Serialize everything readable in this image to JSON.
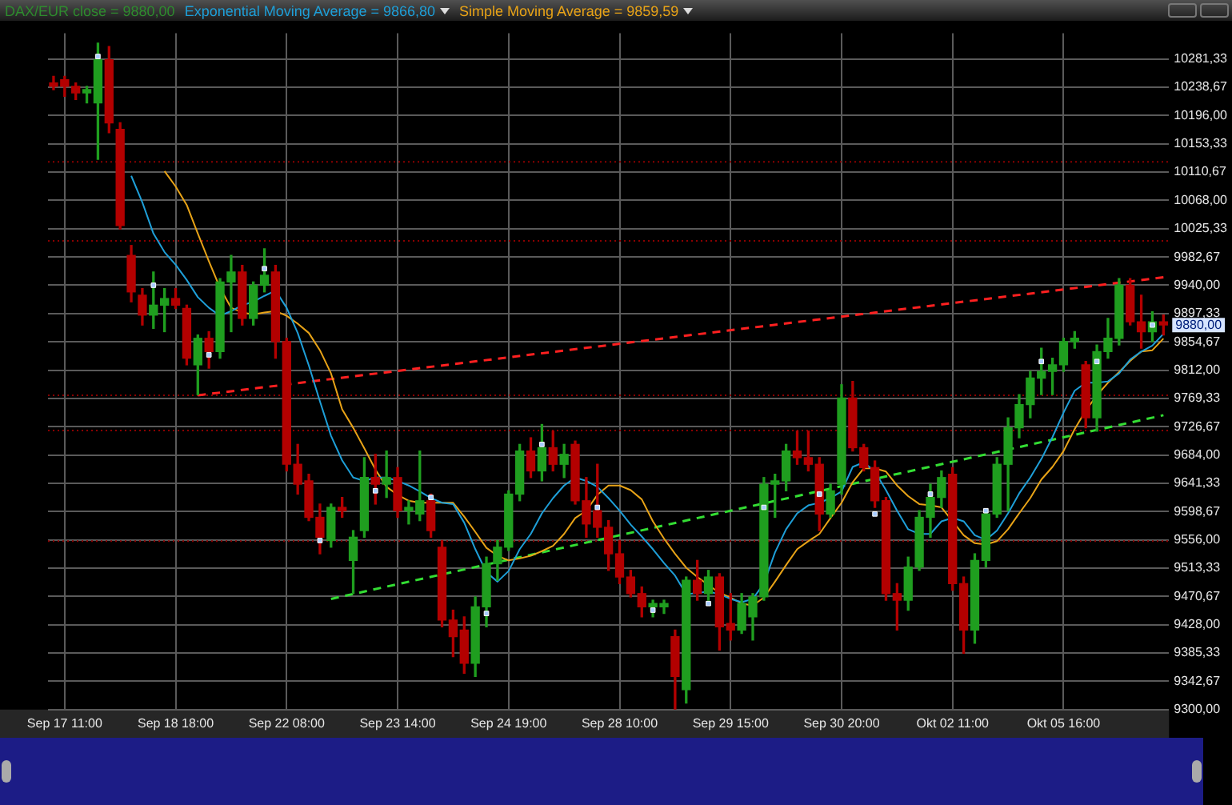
{
  "chart_data": {
    "type": "candlestick",
    "legend": "top left",
    "grid": true,
    "categories": [
      null,
      "Sep 17 11:00",
      null,
      null,
      null,
      null,
      null,
      null,
      null,
      null,
      null,
      "Sep 18 18:00",
      null,
      null,
      null,
      null,
      null,
      null,
      null,
      null,
      null,
      "Sep 22 08:00",
      null,
      null,
      null,
      null,
      null,
      null,
      null,
      null,
      null,
      "Sep 23 14:00",
      null,
      null,
      null,
      null,
      null,
      null,
      null,
      null,
      null,
      "Sep 24 19:00",
      null,
      null,
      null,
      null,
      null,
      null,
      null,
      null,
      null,
      "Sep 28 10:00",
      null,
      null,
      null,
      null,
      null,
      null,
      null,
      null,
      null,
      "Sep 29 15:00",
      null,
      null,
      null,
      null,
      null,
      null,
      null,
      null,
      null,
      "Sep 30 20:00",
      null,
      null,
      null,
      null,
      null,
      null,
      null,
      null,
      null,
      "Okt 02 11:00",
      null,
      null,
      null,
      null,
      null,
      null,
      null,
      null,
      null,
      "Okt 05 16:00",
      null,
      null,
      null,
      null,
      null,
      null,
      null,
      null,
      null
    ],
    "ylim": [
      9300,
      10320
    ],
    "yticks": [
      {
        "value": 9300,
        "label": "9300,00"
      },
      {
        "value": 9342.67,
        "label": "9342,67"
      },
      {
        "value": 9385.33,
        "label": "9385,33"
      },
      {
        "value": 9428,
        "label": "9428,00"
      },
      {
        "value": 9470.67,
        "label": "9470,67"
      },
      {
        "value": 9513.33,
        "label": "9513,33"
      },
      {
        "value": 9556,
        "label": "9556,00"
      },
      {
        "value": 9598.67,
        "label": "9598,67"
      },
      {
        "value": 9641.33,
        "label": "9641,33"
      },
      {
        "value": 9684,
        "label": "9684,00"
      },
      {
        "value": 9726.67,
        "label": "9726,67"
      },
      {
        "value": 9769.33,
        "label": "9769,33"
      },
      {
        "value": 9812,
        "label": "9812,00"
      },
      {
        "value": 9854.67,
        "label": "9854,67"
      },
      {
        "value": 9897.33,
        "label": "9897,33"
      },
      {
        "value": 9940,
        "label": "9940,00"
      },
      {
        "value": 9982.67,
        "label": "9982,67"
      },
      {
        "value": 10025.33,
        "label": "10025,33"
      },
      {
        "value": 10068,
        "label": "10068,00"
      },
      {
        "value": 10110.67,
        "label": "10110,67"
      },
      {
        "value": 10153.33,
        "label": "10153,33"
      },
      {
        "value": 10196,
        "label": "10196,00"
      },
      {
        "value": 10238.67,
        "label": "10238,67"
      },
      {
        "value": 10281.33,
        "label": "10281,33"
      }
    ],
    "ref_lines": [
      {
        "axis": "y",
        "value": 10126,
        "color": "#8b0000",
        "line_style": "dotted"
      },
      {
        "axis": "y",
        "value": 10007,
        "color": "#8b0000",
        "line_style": "dotted"
      },
      {
        "axis": "y",
        "value": 9774,
        "color": "#8b0000",
        "line_style": "dotted"
      },
      {
        "axis": "y",
        "value": 9721,
        "color": "#8b0000",
        "line_style": "dotted"
      },
      {
        "axis": "y",
        "value": 9554,
        "color": "#8b0000",
        "line_style": "dotted"
      }
    ],
    "annotations": [
      "9880,00"
    ],
    "series": [
      {
        "name": "DAX/EUR close = 9880,00",
        "color": "#2e8b2e",
        "ohlc": [
          [
            10245,
            10255,
            10235,
            10240
          ],
          [
            10250,
            10255,
            10225,
            10240
          ],
          [
            10240,
            10245,
            10220,
            10230
          ],
          [
            10230,
            10240,
            10215,
            10235
          ],
          [
            10215,
            10305,
            10130,
            10280
          ],
          [
            10280,
            10300,
            10170,
            10185
          ],
          [
            10175,
            10185,
            10025,
            10030
          ],
          [
            9985,
            10000,
            9915,
            9930
          ],
          [
            9925,
            9935,
            9880,
            9895
          ],
          [
            9895,
            9960,
            9875,
            9910
          ],
          [
            9910,
            9935,
            9870,
            9920
          ],
          [
            9920,
            9935,
            9905,
            9910
          ],
          [
            9905,
            9910,
            9820,
            9830
          ],
          [
            9820,
            9865,
            9775,
            9860
          ],
          [
            9860,
            9870,
            9815,
            9840
          ],
          [
            9840,
            9950,
            9830,
            9945
          ],
          [
            9945,
            9985,
            9870,
            9960
          ],
          [
            9960,
            9970,
            9880,
            9890
          ],
          [
            9890,
            9945,
            9880,
            9940
          ],
          [
            9940,
            9995,
            9930,
            9955
          ],
          [
            9960,
            9970,
            9830,
            9855
          ],
          [
            9855,
            9860,
            9660,
            9670
          ],
          [
            9670,
            9700,
            9625,
            9640
          ],
          [
            9645,
            9655,
            9585,
            9590
          ],
          [
            9590,
            9610,
            9535,
            9560
          ],
          [
            9555,
            9610,
            9545,
            9605
          ],
          [
            9605,
            9620,
            9590,
            9600
          ],
          [
            9525,
            9570,
            9475,
            9560
          ],
          [
            9570,
            9680,
            9560,
            9650
          ],
          [
            9650,
            9685,
            9610,
            9640
          ],
          [
            9640,
            9690,
            9620,
            9650
          ],
          [
            9650,
            9665,
            9590,
            9600
          ],
          [
            9600,
            9615,
            9580,
            9605
          ],
          [
            9595,
            9690,
            9585,
            9615
          ],
          [
            9615,
            9625,
            9560,
            9570
          ],
          [
            9545,
            9555,
            9425,
            9435
          ],
          [
            9435,
            9450,
            9380,
            9410
          ],
          [
            9420,
            9440,
            9355,
            9370
          ],
          [
            9370,
            9470,
            9350,
            9455
          ],
          [
            9455,
            9530,
            9425,
            9520
          ],
          [
            9520,
            9555,
            9495,
            9545
          ],
          [
            9545,
            9630,
            9540,
            9625
          ],
          [
            9625,
            9700,
            9615,
            9690
          ],
          [
            9690,
            9710,
            9650,
            9660
          ],
          [
            9660,
            9730,
            9645,
            9695
          ],
          [
            9695,
            9720,
            9660,
            9670
          ],
          [
            9670,
            9700,
            9650,
            9685
          ],
          [
            9700,
            9705,
            9610,
            9615
          ],
          [
            9615,
            9650,
            9560,
            9580
          ],
          [
            9600,
            9670,
            9560,
            9575
          ],
          [
            9575,
            9585,
            9510,
            9535
          ],
          [
            9535,
            9555,
            9490,
            9500
          ],
          [
            9500,
            9510,
            9470,
            9475
          ],
          [
            9475,
            9485,
            9440,
            9455
          ],
          [
            9455,
            9465,
            9440,
            9460
          ],
          [
            9455,
            9465,
            9445,
            9460
          ],
          [
            9410,
            9420,
            9300,
            9350
          ],
          [
            9330,
            9500,
            9310,
            9495
          ],
          [
            9495,
            9525,
            9465,
            9475
          ],
          [
            9475,
            9510,
            9465,
            9500
          ],
          [
            9500,
            9505,
            9390,
            9425
          ],
          [
            9430,
            9475,
            9405,
            9420
          ],
          [
            9420,
            9475,
            9415,
            9460
          ],
          [
            9440,
            9475,
            9405,
            9470
          ],
          [
            9470,
            9650,
            9465,
            9640
          ],
          [
            9640,
            9655,
            9590,
            9645
          ],
          [
            9645,
            9700,
            9630,
            9690
          ],
          [
            9690,
            9720,
            9670,
            9680
          ],
          [
            9680,
            9720,
            9660,
            9670
          ],
          [
            9670,
            9680,
            9570,
            9595
          ],
          [
            9595,
            9640,
            9590,
            9630
          ],
          [
            9640,
            9790,
            9625,
            9770
          ],
          [
            9770,
            9795,
            9690,
            9695
          ],
          [
            9695,
            9700,
            9660,
            9665
          ],
          [
            9665,
            9675,
            9605,
            9615
          ],
          [
            9615,
            9620,
            9465,
            9475
          ],
          [
            9475,
            9490,
            9420,
            9465
          ],
          [
            9465,
            9530,
            9450,
            9515
          ],
          [
            9515,
            9600,
            9510,
            9590
          ],
          [
            9590,
            9640,
            9560,
            9620
          ],
          [
            9620,
            9660,
            9605,
            9650
          ],
          [
            9655,
            9665,
            9480,
            9490
          ],
          [
            9490,
            9500,
            9385,
            9420
          ],
          [
            9420,
            9535,
            9400,
            9525
          ],
          [
            9525,
            9600,
            9515,
            9595
          ],
          [
            9595,
            9680,
            9590,
            9670
          ],
          [
            9670,
            9740,
            9600,
            9725
          ],
          [
            9725,
            9775,
            9710,
            9760
          ],
          [
            9760,
            9810,
            9740,
            9800
          ],
          [
            9800,
            9845,
            9775,
            9810
          ],
          [
            9810,
            9830,
            9775,
            9820
          ],
          [
            9820,
            9860,
            9810,
            9855
          ],
          [
            9855,
            9870,
            9845,
            9860
          ],
          [
            9820,
            9825,
            9725,
            9740
          ],
          [
            9740,
            9850,
            9720,
            9840
          ],
          [
            9840,
            9890,
            9830,
            9860
          ],
          [
            9860,
            9950,
            9850,
            9940
          ],
          [
            9940,
            9950,
            9880,
            9885
          ],
          [
            9885,
            9925,
            9845,
            9870
          ],
          [
            9870,
            9900,
            9855,
            9885
          ],
          [
            9885,
            9895,
            9865,
            9880
          ]
        ],
        "colors": [
          "#b30000",
          "#b30000",
          "#b30000",
          "#1f9e1f",
          "#1f9e1f",
          "#b30000",
          "#b30000",
          "#b30000",
          "#b30000",
          "#1f9e1f",
          "#1f9e1f",
          "#b30000",
          "#b30000",
          "#1f9e1f",
          "#b30000",
          "#1f9e1f",
          "#1f9e1f",
          "#b30000",
          "#1f9e1f",
          "#1f9e1f",
          "#b30000",
          "#b30000",
          "#b30000",
          "#b30000",
          "#b30000",
          "#1f9e1f",
          "#b30000",
          "#1f9e1f",
          "#1f9e1f",
          "#b30000",
          "#1f9e1f",
          "#b30000",
          "#1f9e1f",
          "#1f9e1f",
          "#b30000",
          "#b30000",
          "#b30000",
          "#b30000",
          "#1f9e1f",
          "#1f9e1f",
          "#1f9e1f",
          "#1f9e1f",
          "#1f9e1f",
          "#b30000",
          "#1f9e1f",
          "#b30000",
          "#1f9e1f",
          "#b30000",
          "#b30000",
          "#b30000",
          "#b30000",
          "#b30000",
          "#b30000",
          "#b30000",
          "#1f9e1f",
          "#1f9e1f",
          "#b30000",
          "#1f9e1f",
          "#b30000",
          "#1f9e1f",
          "#b30000",
          "#b30000",
          "#1f9e1f",
          "#1f9e1f",
          "#1f9e1f",
          "#1f9e1f",
          "#1f9e1f",
          "#b30000",
          "#b30000",
          "#b30000",
          "#1f9e1f",
          "#1f9e1f",
          "#b30000",
          "#b30000",
          "#b30000",
          "#b30000",
          "#b30000",
          "#1f9e1f",
          "#1f9e1f",
          "#1f9e1f",
          "#1f9e1f",
          "#b30000",
          "#b30000",
          "#1f9e1f",
          "#1f9e1f",
          "#1f9e1f",
          "#1f9e1f",
          "#1f9e1f",
          "#1f9e1f",
          "#1f9e1f",
          "#1f9e1f",
          "#1f9e1f",
          "#1f9e1f",
          "#b30000",
          "#1f9e1f",
          "#1f9e1f",
          "#1f9e1f",
          "#b30000",
          "#b30000",
          "#1f9e1f",
          "#b30000"
        ]
      },
      {
        "type": "line",
        "name": "Exponential Moving Average = 9866,80",
        "color": "#1e9fd8",
        "values": [
          null,
          null,
          null,
          null,
          null,
          null,
          null,
          10105,
          10065,
          10018,
          9990,
          9971,
          9948,
          9922,
          9906,
          9894,
          9901,
          9910,
          9915,
          9924,
          9932,
          9906,
          9868,
          9819,
          9765,
          9713,
          9676,
          9650,
          9645,
          9650,
          9650,
          9645,
          9638,
          9629,
          9619,
          9612,
          9610,
          9582,
          9542,
          9507,
          9493,
          9509,
          9542,
          9565,
          9596,
          9619,
          9638,
          9650,
          9645,
          9636,
          9619,
          9600,
          9579,
          9561,
          9542,
          9521,
          9502,
          9474,
          9476,
          9478,
          9474,
          9467,
          9462,
          9467,
          9490,
          9537,
          9572,
          9596,
          9608,
          9612,
          9619,
          9629,
          9666,
          9673,
          9659,
          9631,
          9600,
          9572,
          9565,
          9565,
          9584,
          9589,
          9584,
          9563,
          9556,
          9570,
          9596,
          9626,
          9650,
          9678,
          9711,
          9748,
          9781,
          9793,
          9793,
          9795,
          9807,
          9828,
          9840,
          9849,
          9866.8
        ]
      },
      {
        "type": "line",
        "name": "Simple Moving Average = 9859,59",
        "color": "#e8a317",
        "values": [
          null,
          null,
          null,
          null,
          null,
          null,
          null,
          null,
          null,
          null,
          10112,
          10089,
          10061,
          10018,
          9976,
          9936,
          9906,
          9899,
          9896,
          9899,
          9901,
          9894,
          9882,
          9868,
          9842,
          9807,
          9753,
          9725,
          9694,
          9662,
          9636,
          9624,
          9615,
          9612,
          9612,
          9612,
          9612,
          9591,
          9568,
          9544,
          9532,
          9525,
          9528,
          9532,
          9539,
          9547,
          9565,
          9589,
          9600,
          9624,
          9638,
          9638,
          9631,
          9617,
          9584,
          9558,
          9535,
          9514,
          9500,
          9488,
          9476,
          9469,
          9460,
          9457,
          9469,
          9493,
          9518,
          9542,
          9554,
          9565,
          9589,
          9612,
          9643,
          9664,
          9664,
          9659,
          9638,
          9622,
          9610,
          9608,
          9605,
          9584,
          9563,
          9551,
          9549,
          9554,
          9572,
          9596,
          9619,
          9647,
          9666,
          9690,
          9723,
          9751,
          9774,
          9793,
          9809,
          9826,
          9840,
          9842,
          9859.59
        ]
      },
      {
        "type": "line",
        "color": "#ff2020",
        "line_style": "dashed",
        "values": [
          null,
          null,
          null,
          null,
          null,
          null,
          null,
          null,
          null,
          null,
          null,
          null,
          null,
          9774,
          null,
          null,
          null,
          null,
          null,
          null,
          null,
          null,
          null,
          null,
          null,
          null,
          null,
          null,
          null,
          null,
          null,
          null,
          null,
          null,
          null,
          null,
          null,
          null,
          null,
          null,
          null,
          null,
          null,
          null,
          null,
          null,
          null,
          null,
          null,
          null,
          null,
          null,
          null,
          null,
          null,
          null,
          null,
          null,
          null,
          null,
          null,
          null,
          null,
          null,
          null,
          null,
          null,
          null,
          null,
          null,
          null,
          null,
          null,
          null,
          null,
          null,
          null,
          null,
          null,
          null,
          null,
          null,
          null,
          null,
          null,
          null,
          null,
          null,
          null,
          null,
          null,
          null,
          null,
          null,
          null,
          null,
          null,
          null,
          null,
          null,
          9952
        ]
      },
      {
        "type": "line",
        "color": "#33dd33",
        "line_style": "dashed",
        "values": [
          null,
          null,
          null,
          null,
          null,
          null,
          null,
          null,
          null,
          null,
          null,
          null,
          null,
          null,
          null,
          null,
          null,
          null,
          null,
          null,
          null,
          null,
          null,
          null,
          null,
          9467,
          null,
          null,
          null,
          null,
          null,
          null,
          null,
          null,
          null,
          null,
          null,
          null,
          null,
          null,
          null,
          null,
          null,
          null,
          null,
          null,
          null,
          null,
          null,
          null,
          null,
          null,
          null,
          null,
          null,
          null,
          null,
          null,
          null,
          null,
          null,
          null,
          null,
          null,
          null,
          null,
          null,
          null,
          null,
          null,
          null,
          null,
          null,
          null,
          null,
          null,
          null,
          null,
          null,
          null,
          null,
          null,
          null,
          null,
          null,
          null,
          null,
          null,
          null,
          null,
          null,
          null,
          null,
          null,
          null,
          null,
          null,
          null,
          null,
          null,
          9744
        ]
      },
      {
        "type": "scatter",
        "color": "#a8ccff",
        "marker": "square",
        "values": [
          null,
          null,
          null,
          null,
          10285,
          null,
          null,
          null,
          null,
          9940,
          null,
          null,
          null,
          null,
          9835,
          null,
          null,
          null,
          null,
          9965,
          null,
          null,
          null,
          null,
          9555,
          null,
          null,
          null,
          null,
          9630,
          null,
          null,
          null,
          null,
          9620,
          null,
          null,
          null,
          null,
          9445,
          null,
          null,
          null,
          null,
          9700,
          null,
          null,
          null,
          null,
          9605,
          null,
          null,
          null,
          null,
          9450,
          null,
          null,
          null,
          null,
          9460,
          null,
          null,
          null,
          null,
          9605,
          null,
          null,
          null,
          null,
          9625,
          null,
          null,
          null,
          null,
          9595,
          null,
          null,
          null,
          null,
          9625,
          null,
          null,
          null,
          null,
          9600,
          null,
          null,
          null,
          null,
          9825,
          null,
          null,
          null,
          null,
          9825,
          null,
          null,
          null,
          null,
          9880,
          null
        ]
      }
    ]
  }
}
